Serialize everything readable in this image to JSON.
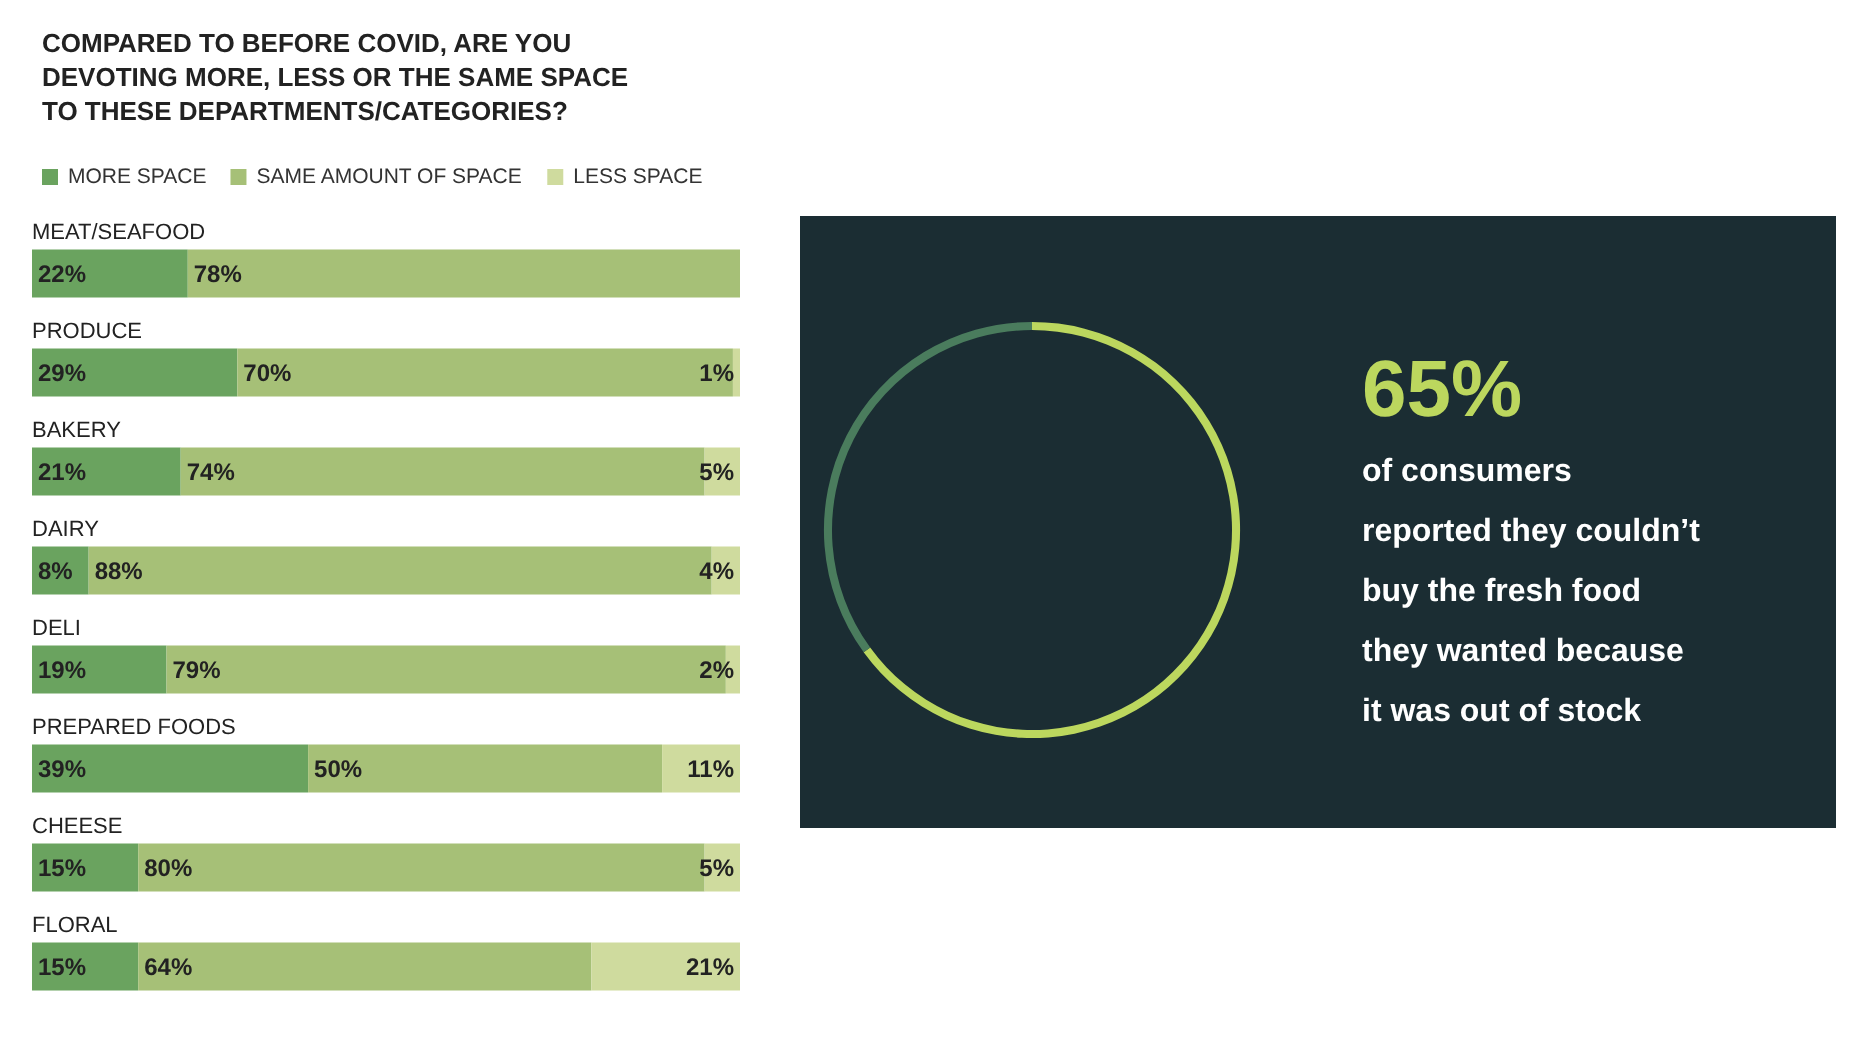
{
  "chart_data": [
    {
      "type": "bar",
      "orientation": "horizontal",
      "stacked": true,
      "title": "COMPARED TO BEFORE COVID, ARE YOU\nDEVOTING MORE, LESS OR THE SAME SPACE\nTO THESE DEPARTMENTS/CATEGORIES?",
      "legend": "top left",
      "categories": [
        "MEAT/SEAFOOD",
        "PRODUCE",
        "BAKERY",
        "DAIRY",
        "DELI",
        "PREPARED FOODS",
        "CHEESE",
        "FLORAL"
      ],
      "series": [
        {
          "name": "MORE SPACE",
          "color": "#6aa35f",
          "values": [
            22,
            29,
            21,
            8,
            19,
            39,
            15,
            15
          ],
          "value_labels": [
            "22%",
            "29%",
            "21%",
            "8%",
            "19%",
            "39%",
            "15%",
            "15%"
          ]
        },
        {
          "name": "SAME AMOUNT OF SPACE",
          "color": "#a6c077",
          "values": [
            78,
            70,
            74,
            88,
            79,
            50,
            80,
            64
          ],
          "value_labels": [
            "78%",
            "70%",
            "74%",
            "88%",
            "79%",
            "50%",
            "80%",
            "64%"
          ]
        },
        {
          "name": "LESS SPACE",
          "color": "#cfdb9e",
          "values": [
            null,
            1,
            5,
            4,
            2,
            11,
            5,
            21
          ],
          "value_labels": [
            null,
            "1%",
            "5%",
            "4%",
            "2%",
            "11%",
            "5%",
            "21%"
          ]
        }
      ]
    },
    {
      "type": "donut",
      "title": "65%",
      "subtitle": "of consumers\nreported they couldn’t\nbuy the fresh food\nthey wanted because\nit was out of stock",
      "categories": [
        null,
        null
      ],
      "values": [
        65,
        35
      ],
      "colors": [
        "#bcd75e",
        "#4a7c5d"
      ]
    }
  ]
}
